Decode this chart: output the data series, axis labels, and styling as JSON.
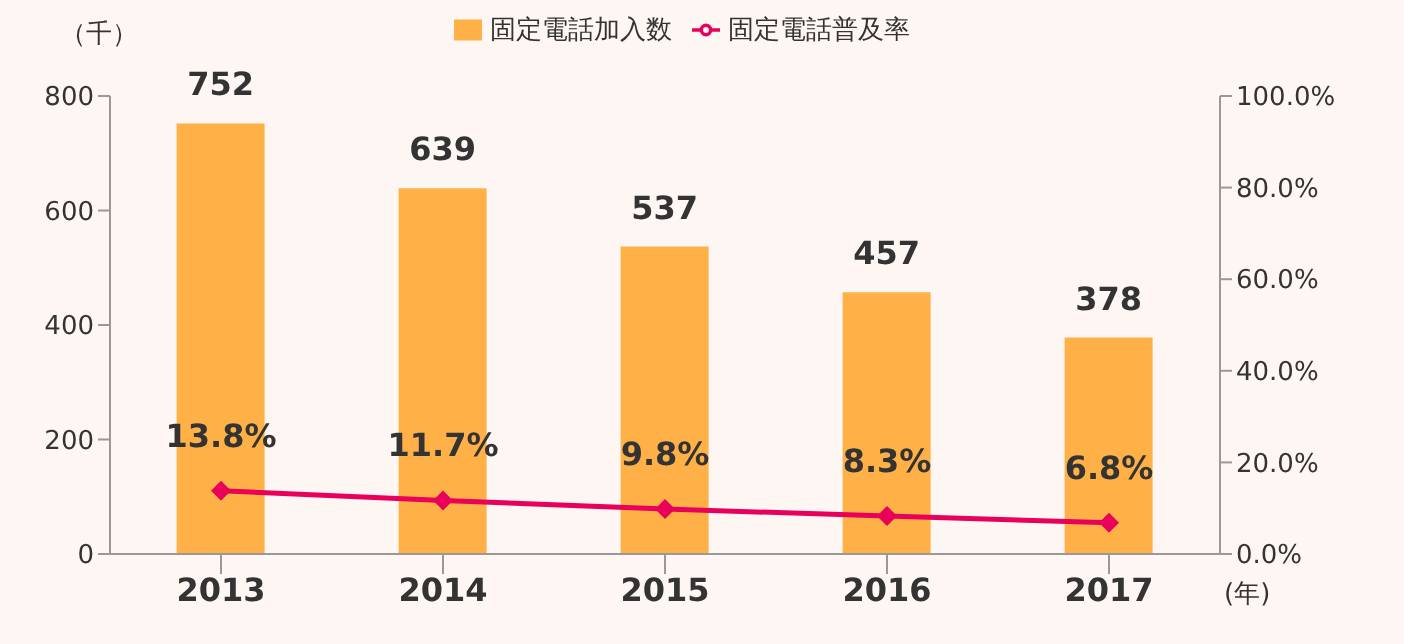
{
  "chart_data": {
    "type": "bar",
    "categories": [
      "2013",
      "2014",
      "2015",
      "2016",
      "2017"
    ],
    "ylabel": "（千）",
    "xlabel": "(年)",
    "ylim": [
      0,
      800
    ],
    "yticks": [
      0,
      200,
      400,
      600,
      800
    ],
    "y2lim": [
      0,
      100
    ],
    "y2ticks": [
      {
        "value": 0,
        "label": "0.0%"
      },
      {
        "value": 20,
        "label": "20.0%"
      },
      {
        "value": 40,
        "label": "40.0%"
      },
      {
        "value": 60,
        "label": "60.0%"
      },
      {
        "value": 80,
        "label": "80.0%"
      },
      {
        "value": 100,
        "label": "100.0%"
      }
    ],
    "legend": "top",
    "marker": "diamond",
    "grid": false,
    "series": [
      {
        "name": "固定電話加入数",
        "color": "#ffb047",
        "values": [
          752,
          639,
          537,
          457,
          378
        ],
        "value_labels": [
          "752",
          "639",
          "537",
          "457",
          "378"
        ]
      },
      {
        "name": "固定電話普及率",
        "type": "line",
        "axis": "y2",
        "color": "#e8005a",
        "values": [
          13.8,
          11.7,
          9.8,
          8.3,
          6.8
        ],
        "value_labels": [
          "13.8%",
          "11.7%",
          "9.8%",
          "8.3%",
          "6.8%"
        ]
      }
    ]
  }
}
